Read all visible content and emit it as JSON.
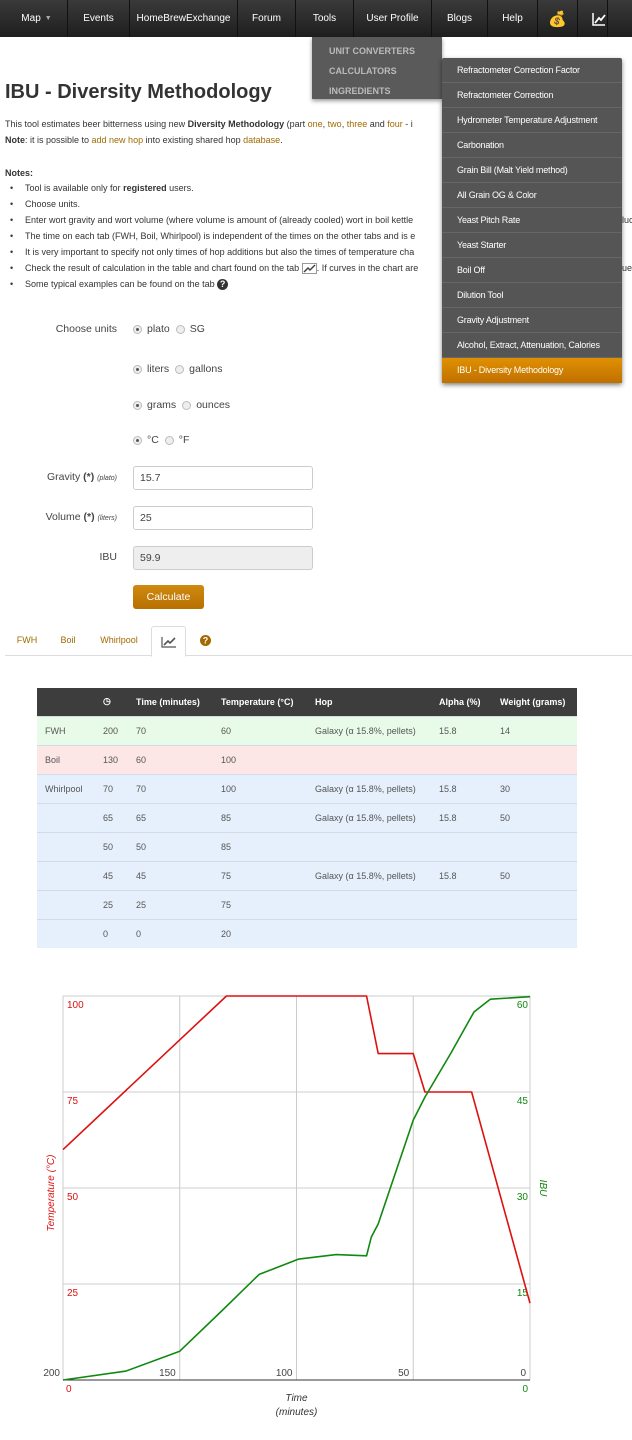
{
  "nav": {
    "items": [
      "Map",
      "Events",
      "HomeBrewExchange",
      "Forum",
      "Tools",
      "User Profile",
      "Blogs",
      "Help"
    ],
    "icons": [
      "money-bag-icon",
      "chart-line-icon"
    ]
  },
  "tools_menu": [
    "UNIT CONVERTERS",
    "CALCULATORS",
    "INGREDIENTS"
  ],
  "calculators_menu": [
    "Refractometer Correction Factor",
    "Refractometer Correction",
    "Hydrometer Temperature Adjustment",
    "Carbonation",
    "Grain Bill (Malt Yield method)",
    "All Grain OG & Color",
    "Yeast Pitch Rate",
    "Yeast Starter",
    "Boil Off",
    "Dilution Tool",
    "Gravity Adjustment",
    "Alcohol, Extract, Attenuation, Calories",
    "IBU - Diversity Methodology"
  ],
  "page_title": "IBU - Diversity Methodology",
  "intro": {
    "a": "This tool estimates beer bitterness using new ",
    "b": "Diversity Methodology",
    "c": " (part ",
    "l1": "one",
    ", ": ", ",
    "l2": "two",
    "d": ", ",
    "l3": "three",
    "e": " and ",
    "l4": "four",
    "f": " - i"
  },
  "note": {
    "label": "Note",
    "a": ": it is possible to ",
    "link1": "add new hop",
    "b": " into existing shared hop ",
    "link2": "database",
    "c": "."
  },
  "notes_title": "Notes:",
  "notes": [
    {
      "a": "Tool is available only for ",
      "b": "registered",
      "c": " users."
    },
    {
      "a": "Choose units."
    },
    {
      "a": "Enter wort gravity and wort volume (where volume is amount of (already cooled) wort in boil kettle",
      "r": "luc"
    },
    {
      "a": "The time on each tab (FWH, Boil, Whirlpool) is independent of the times on the other tabs and is e"
    },
    {
      "a": "It is very important to specify not only times of hop additions but also the times of temperature cha"
    },
    {
      "a": "Check the result of calculation in the table and chart found on the tab ",
      "c": ". If curves in the chart are",
      "r": "ues"
    },
    {
      "a": "Some typical examples can be found on the tab "
    }
  ],
  "form": {
    "choose_units": "Choose units",
    "units": [
      [
        "plato",
        "SG"
      ],
      [
        "liters",
        "gallons"
      ],
      [
        "grams",
        "ounces"
      ],
      [
        "°C",
        "°F"
      ]
    ],
    "gravity_label": "Gravity",
    "gravity_req": "(*)",
    "gravity_unit": "(plato)",
    "gravity": "15.7",
    "volume_label": "Volume",
    "volume_req": "(*)",
    "volume_unit": "(liters)",
    "volume": "25",
    "ibu_label": "IBU",
    "ibu": "59.9",
    "calculate": "Calculate"
  },
  "tabs": [
    "FWH",
    "Boil",
    "Whirlpool"
  ],
  "table": {
    "headers": [
      "",
      "clock-icon",
      "Time (minutes)",
      "Temperature (°C)",
      "Hop",
      "Alpha (%)",
      "Weight (grams)"
    ],
    "rows": [
      {
        "type": "fwh",
        "cells": [
          "FWH",
          "200",
          "70",
          "60",
          "Galaxy (α 15.8%, pellets)",
          "15.8",
          "14"
        ]
      },
      {
        "type": "boil",
        "cells": [
          "Boil",
          "130",
          "60",
          "100",
          "",
          "",
          ""
        ]
      },
      {
        "type": "wp",
        "cells": [
          "Whirlpool",
          "70",
          "70",
          "100",
          "Galaxy (α 15.8%, pellets)",
          "15.8",
          "30"
        ]
      },
      {
        "type": "wp",
        "cells": [
          "",
          "65",
          "65",
          "85",
          "Galaxy (α 15.8%, pellets)",
          "15.8",
          "50"
        ]
      },
      {
        "type": "wp",
        "cells": [
          "",
          "50",
          "50",
          "85",
          "",
          "",
          ""
        ]
      },
      {
        "type": "wp",
        "cells": [
          "",
          "45",
          "45",
          "75",
          "Galaxy (α 15.8%, pellets)",
          "15.8",
          "50"
        ]
      },
      {
        "type": "wp",
        "cells": [
          "",
          "25",
          "25",
          "75",
          "",
          "",
          ""
        ]
      },
      {
        "type": "wp",
        "cells": [
          "",
          "0",
          "0",
          "20",
          "",
          "",
          ""
        ]
      }
    ]
  },
  "chart_data": {
    "type": "line",
    "xlabel": "Time",
    "xlabel2": "(minutes)",
    "ylabel_left": "Temperature (°C)",
    "ylabel_right": "IBU",
    "xlim": [
      200,
      0
    ],
    "ylim_left": [
      0,
      100
    ],
    "ylim_right": [
      0,
      60
    ],
    "x_ticks": [
      "200",
      "150",
      "100",
      "50",
      "0"
    ],
    "y_left_ticks": [
      "0",
      "25",
      "50",
      "75",
      "100"
    ],
    "y_right_ticks": [
      "0",
      "15",
      "30",
      "45",
      "60"
    ],
    "grid": true,
    "colors": {
      "temperature": "#dd1111",
      "ibu": "#118811"
    },
    "series": [
      {
        "axis": "left",
        "x": [
          200,
          130,
          70,
          65,
          50,
          45,
          25,
          0
        ],
        "y": [
          60,
          100,
          100,
          85,
          85,
          75,
          75,
          20
        ]
      },
      {
        "axis": "right",
        "x": [
          200,
          173,
          150,
          132,
          116,
          99,
          83,
          70,
          68,
          65,
          50,
          45,
          34,
          24,
          17,
          0
        ],
        "y": [
          0,
          1.4,
          4.5,
          10.8,
          16.5,
          18.9,
          19.6,
          19.4,
          22.3,
          24.4,
          40.6,
          44.2,
          51,
          57.5,
          59.5,
          59.9
        ]
      }
    ]
  }
}
